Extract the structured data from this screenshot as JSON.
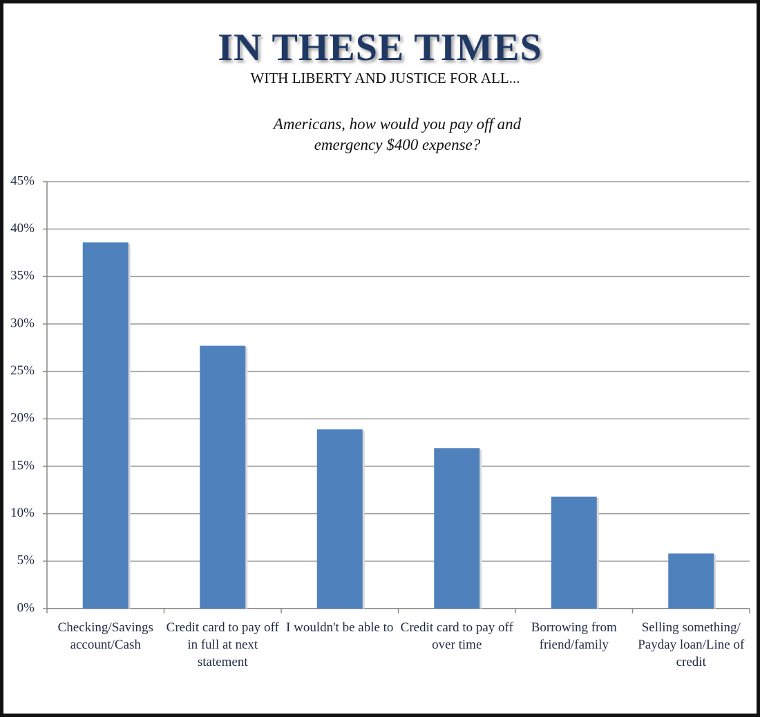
{
  "chart_data": {
    "type": "bar",
    "title": "IN THESE TIMES",
    "subtitle": "WITH LIBERTY AND JUSTICE FOR ALL...",
    "question": "Americans, how would you pay off and emergency $400 expense?",
    "categories": [
      "Checking/Savings account/Cash",
      "Credit card to pay off in full at next statement",
      "I wouldn't be able to",
      "Credit card to pay off over time",
      "Borrowing from friend/family",
      "Selling something/ Payday loan/Line of credit"
    ],
    "values": [
      38.6,
      27.7,
      18.9,
      16.9,
      11.8,
      5.8
    ],
    "color": "#4f81bd",
    "ylim": [
      0,
      45
    ],
    "yticks": [
      {
        "value": 0,
        "label": "0%"
      },
      {
        "value": 5,
        "label": "5%"
      },
      {
        "value": 10,
        "label": "10%"
      },
      {
        "value": 15,
        "label": "15%"
      },
      {
        "value": 20,
        "label": "20%"
      },
      {
        "value": 25,
        "label": "25%"
      },
      {
        "value": 30,
        "label": "30%"
      },
      {
        "value": 35,
        "label": "35%"
      },
      {
        "value": 40,
        "label": "40%"
      },
      {
        "value": 45,
        "label": "45%"
      }
    ],
    "grid": true
  }
}
